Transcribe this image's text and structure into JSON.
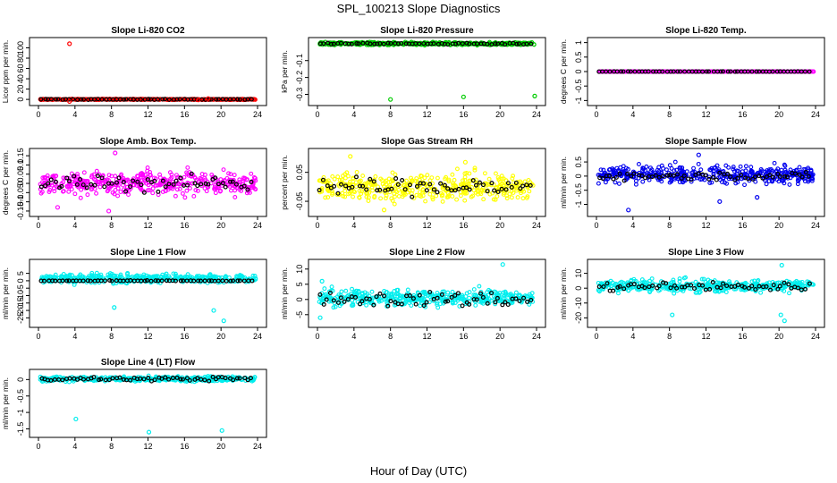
{
  "figure": {
    "title": "SPL_100213  Slope Diagnostics",
    "xlabel": "Hour of Day (UTC)"
  },
  "chart_data": [
    {
      "type": "scatter",
      "title": "Slope Li-820 CO2",
      "ylabel": "Licor ppm per min.",
      "xlim": [
        0,
        24
      ],
      "ylim": [
        -5,
        113
      ],
      "xticks": [
        0,
        4,
        8,
        12,
        16,
        20,
        24
      ],
      "yticks": [
        0,
        20,
        40,
        60,
        80,
        100
      ],
      "color": "#ff0000",
      "band": {
        "center": 0,
        "spread": 0.8
      },
      "outliers": [
        [
          3.4,
          108
        ],
        [
          3.4,
          -4
        ],
        [
          18.6,
          1.5
        ],
        [
          17.5,
          -1
        ]
      ],
      "black_band": {
        "center": 0,
        "spread": 0.6
      }
    },
    {
      "type": "scatter",
      "title": "Slope Li-820 Pressure",
      "ylabel": "kPa per min.",
      "xlim": [
        0,
        24
      ],
      "ylim": [
        -0.345,
        0.015
      ],
      "xticks": [
        0,
        4,
        8,
        12,
        16,
        20,
        24
      ],
      "yticks": [
        -0.1,
        -0.2,
        -0.3
      ],
      "color": "#00cc00",
      "band": {
        "center": 0,
        "spread": 0.008
      },
      "outliers": [
        [
          8,
          -0.33
        ],
        [
          16,
          -0.315
        ],
        [
          23.8,
          -0.31
        ]
      ],
      "black_band": {
        "center": 0,
        "spread": 0.005
      }
    },
    {
      "type": "scatter",
      "title": "Slope Li-820 Temp.",
      "ylabel": "degrees C per min.",
      "xlim": [
        0,
        24
      ],
      "ylim": [
        -1.05,
        1.05
      ],
      "xticks": [
        0,
        4,
        8,
        12,
        16,
        20,
        24
      ],
      "yticks": [
        -1.0,
        -0.5,
        0.0,
        0.5,
        1.0
      ],
      "color": "#ff00ff",
      "band": {
        "center": 0,
        "spread": 0.005
      },
      "outliers": [],
      "black_band": {
        "center": 0,
        "spread": 0.003
      }
    },
    {
      "type": "scatter",
      "title": "Slope Amb. Box Temp.",
      "ylabel": "degrees C per min.",
      "xlim": [
        0,
        24
      ],
      "ylim": [
        -0.16,
        0.17
      ],
      "xticks": [
        0,
        4,
        8,
        12,
        16,
        20,
        24
      ],
      "yticks": [
        -0.15,
        -0.1,
        -0.05,
        0.0,
        0.05,
        0.1,
        0.15
      ],
      "color": "#ff00ff",
      "band": {
        "center": 0,
        "spread": 0.06
      },
      "outliers": [
        [
          8.4,
          0.165
        ],
        [
          7.7,
          -0.15
        ],
        [
          2.1,
          -0.13
        ]
      ],
      "black_band": {
        "center": 0,
        "spread": 0.045
      }
    },
    {
      "type": "scatter",
      "title": "Slope Gas Stream RH",
      "ylabel": "percent per min.",
      "xlim": [
        0,
        24
      ],
      "ylim": [
        -0.09,
        0.12
      ],
      "xticks": [
        0,
        4,
        8,
        12,
        16,
        20,
        24
      ],
      "yticks": [
        -0.05,
        0.05
      ],
      "color": "#ffff00",
      "band": {
        "center": 0,
        "spread": 0.045
      },
      "outliers": [
        [
          3.6,
          0.105
        ],
        [
          16.2,
          0.085
        ],
        [
          7.3,
          -0.08
        ]
      ],
      "black_band": {
        "center": 0,
        "spread": 0.03
      }
    },
    {
      "type": "scatter",
      "title": "Slope Sample Flow",
      "ylabel": "ml/min per min.",
      "xlim": [
        0,
        24
      ],
      "ylim": [
        -1.3,
        0.85
      ],
      "xticks": [
        0,
        4,
        8,
        12,
        16,
        20,
        24
      ],
      "yticks": [
        -1.0,
        -0.5,
        0.0,
        0.5
      ],
      "color": "#0000ee",
      "band": {
        "center": 0.05,
        "spread": 0.3
      },
      "outliers": [
        [
          3.5,
          -1.2
        ],
        [
          11.2,
          0.75
        ],
        [
          13.5,
          -0.9
        ],
        [
          17.6,
          -0.75
        ]
      ],
      "black_band": {
        "center": 0,
        "spread": 0.12
      }
    },
    {
      "type": "scatter",
      "title": "Slope Line 1 Flow",
      "ylabel": "ml/min per min.",
      "xlim": [
        0,
        24
      ],
      "ylim": [
        -29,
        12
      ],
      "xticks": [
        0,
        4,
        8,
        12,
        16,
        20,
        24
      ],
      "yticks": [
        -25,
        -20,
        -15,
        -10,
        -5,
        0,
        5
      ],
      "color": "#00eeee",
      "band": {
        "center": 1.5,
        "spread": 3
      },
      "outliers": [
        [
          8.3,
          -18
        ],
        [
          19.2,
          -20
        ],
        [
          20.3,
          -27
        ]
      ],
      "black_band": {
        "center": 0,
        "spread": 0.2
      }
    },
    {
      "type": "scatter",
      "title": "Slope Line 2 Flow",
      "ylabel": "ml/min per min.",
      "xlim": [
        0,
        24
      ],
      "ylim": [
        -8,
        12
      ],
      "xticks": [
        0,
        4,
        8,
        12,
        16,
        20,
        24
      ],
      "yticks": [
        -5,
        0,
        5,
        10
      ],
      "color": "#00eeee",
      "band": {
        "center": 0.5,
        "spread": 2.5
      },
      "outliers": [
        [
          20.3,
          11.5
        ],
        [
          0.5,
          6
        ],
        [
          0.3,
          -6
        ]
      ],
      "black_band": {
        "center": 0,
        "spread": 2.5
      }
    },
    {
      "type": "scatter",
      "title": "Slope Line 3 Flow",
      "ylabel": "ml/min per min.",
      "xlim": [
        0,
        24
      ],
      "ylim": [
        -24,
        17
      ],
      "xticks": [
        0,
        4,
        8,
        12,
        16,
        20,
        24
      ],
      "yticks": [
        -20,
        -10,
        0,
        10
      ],
      "color": "#00eeee",
      "band": {
        "center": 1.5,
        "spread": 4
      },
      "outliers": [
        [
          20.3,
          15.5
        ],
        [
          20.2,
          -18
        ],
        [
          20.6,
          -22
        ],
        [
          8.3,
          -18
        ]
      ],
      "black_band": {
        "center": 1,
        "spread": 3
      }
    },
    {
      "type": "scatter",
      "title": "Slope Line 4 (LT) Flow",
      "ylabel": "ml/min per min.",
      "xlim": [
        0,
        24
      ],
      "ylim": [
        -1.65,
        0.2
      ],
      "xticks": [
        0,
        4,
        8,
        12,
        16,
        20,
        24
      ],
      "yticks": [
        -1.5,
        -1.0,
        -0.5,
        0.0
      ],
      "color": "#00eeee",
      "band": {
        "center": 0.02,
        "spread": 0.07
      },
      "outliers": [
        [
          4.1,
          -1.2
        ],
        [
          12.1,
          -1.6
        ],
        [
          20.1,
          -1.55
        ]
      ],
      "black_band": {
        "center": 0.02,
        "spread": 0.06
      }
    }
  ]
}
